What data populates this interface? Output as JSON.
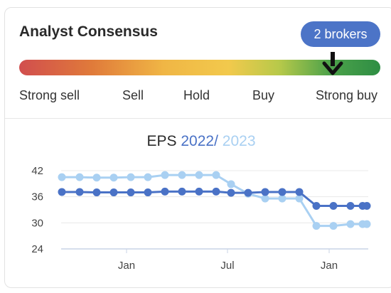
{
  "header": {
    "title": "Analyst Consensus",
    "broker_badge": "2  brokers"
  },
  "consensus": {
    "scale_labels": [
      "Strong sell",
      "Sell",
      "Hold",
      "Buy",
      "Strong buy"
    ],
    "current_rating": "Strong buy",
    "gradient_colors": [
      "#d14e4e",
      "#e07a3a",
      "#f0b645",
      "#f2c94c",
      "#b7c94a",
      "#4da24a",
      "#2e8e44"
    ]
  },
  "eps_title": {
    "prefix": "EPS",
    "year1": "2022",
    "separator": "/",
    "year2": "2023"
  },
  "chart_data": {
    "type": "line",
    "title": "EPS 2022 / 2023",
    "xlabel": "",
    "ylabel": "",
    "ylim": [
      24,
      42
    ],
    "yticks": [
      24,
      30,
      36,
      42
    ],
    "xtick_labels": [
      "Jan",
      "Jul",
      "Jan"
    ],
    "grid": true,
    "series": [
      {
        "name": "2022",
        "color": "#4a72c6",
        "values": [
          37.1,
          37.1,
          37.0,
          37.0,
          37.0,
          37.0,
          37.2,
          37.2,
          37.2,
          37.2,
          36.9,
          36.9,
          37.1,
          37.1,
          37.1,
          33.9,
          33.9,
          33.9,
          33.9,
          33.9
        ]
      },
      {
        "name": "2023",
        "color": "#a9d0f2",
        "values": [
          40.5,
          40.5,
          40.4,
          40.4,
          40.5,
          40.5,
          41.0,
          41.0,
          41.0,
          41.0,
          38.9,
          36.7,
          35.6,
          35.6,
          35.6,
          29.3,
          29.3,
          29.7,
          29.7,
          29.7
        ]
      }
    ]
  }
}
